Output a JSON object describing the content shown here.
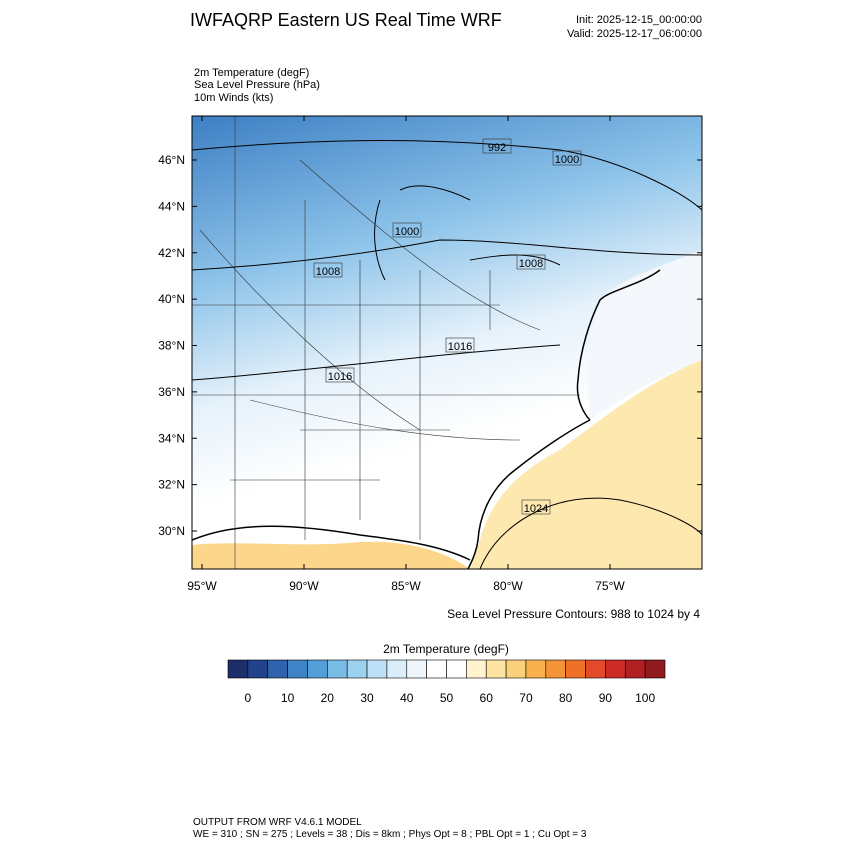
{
  "header": {
    "title": "IWFAQRP Eastern US Real Time WRF",
    "init": "Init: 2025-12-15_00:00:00",
    "valid": "Valid: 2025-12-17_06:00:00"
  },
  "fields": [
    "2m Temperature   (degF)",
    "Sea Level Pressure   (hPa)",
    "10m Winds   (kts)"
  ],
  "map": {
    "lat_ticks": [
      {
        "value": 30,
        "label": "30°N"
      },
      {
        "value": 32,
        "label": "32°N"
      },
      {
        "value": 34,
        "label": "34°N"
      },
      {
        "value": 36,
        "label": "36°N"
      },
      {
        "value": 38,
        "label": "38°N"
      },
      {
        "value": 40,
        "label": "40°N"
      },
      {
        "value": 42,
        "label": "42°N"
      },
      {
        "value": 44,
        "label": "44°N"
      },
      {
        "value": 46,
        "label": "46°N"
      }
    ],
    "lon_ticks": [
      {
        "value": -95,
        "label": "95°W"
      },
      {
        "value": -90,
        "label": "90°W"
      },
      {
        "value": -85,
        "label": "85°W"
      },
      {
        "value": -80,
        "label": "80°W"
      },
      {
        "value": -75,
        "label": "75°W"
      }
    ],
    "contour_labels": [
      992,
      1000,
      1000,
      1008,
      1008,
      1016,
      1016,
      1024
    ]
  },
  "contour_note": "Sea Level Pressure Contours: 988 to 1024 by 4",
  "colorbar": {
    "title": "2m Temperature  (degF)",
    "colors": [
      "#1c2f6b",
      "#23428c",
      "#2f63ad",
      "#3f82c5",
      "#559fd8",
      "#79bce6",
      "#9dd1f0",
      "#bde0f6",
      "#d9edfa",
      "#eef6fc",
      "#ffffff",
      "#ffffff",
      "#fff3d0",
      "#fde4a3",
      "#fbd07a",
      "#f8b14e",
      "#f59436",
      "#ef7027",
      "#e24a2a",
      "#cc2b26",
      "#b01f22",
      "#901a1d"
    ],
    "ticks": [
      0,
      10,
      20,
      30,
      40,
      50,
      60,
      70,
      80,
      90,
      100
    ]
  },
  "footer": [
    "OUTPUT FROM WRF V4.6.1 MODEL",
    "WE = 310 ; SN = 275 ; Levels = 38 ; Dis = 8km ; Phys Opt = 8 ; PBL Opt = 1 ; Cu Opt = 3"
  ]
}
